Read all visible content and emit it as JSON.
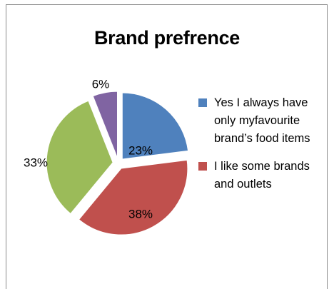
{
  "chart_data": {
    "type": "pie",
    "title": "Brand prefrence",
    "categories": [
      "Yes I always have only myfavourite brand’s food items",
      "I like some brands and outlets",
      "",
      ""
    ],
    "values": [
      23,
      38,
      33,
      6
    ],
    "data_labels": [
      "23%",
      "38%",
      "33%",
      "6%"
    ],
    "colors": [
      "#4f81bd",
      "#c0504d",
      "#9bbb59",
      "#8064a2"
    ],
    "exploded": true,
    "legend": {
      "position": "right",
      "entries": [
        {
          "label_lines": [
            "Yes I always have",
            "only myfavourite",
            "brand’s food items"
          ],
          "color": "#4f81bd"
        },
        {
          "label_lines": [
            "I like some brands",
            "and outlets"
          ],
          "color": "#c0504d"
        }
      ]
    }
  }
}
